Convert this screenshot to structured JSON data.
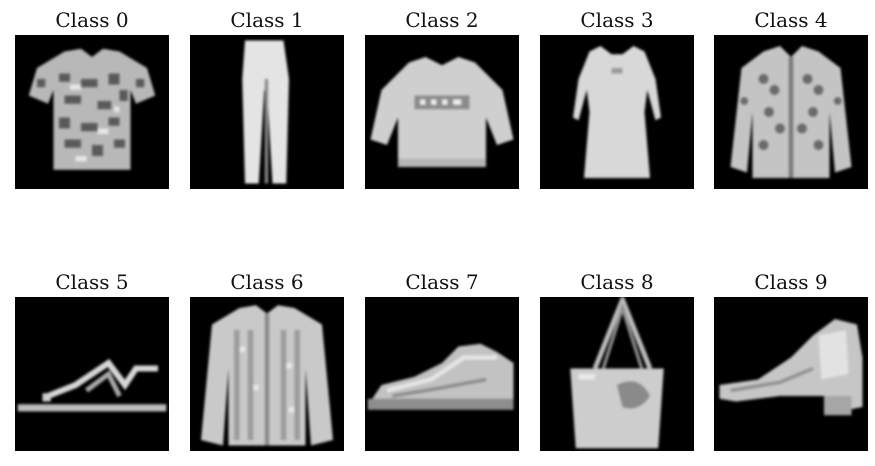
{
  "panels": [
    {
      "title": "Class 0",
      "item": "t-shirt-top"
    },
    {
      "title": "Class 1",
      "item": "trouser"
    },
    {
      "title": "Class 2",
      "item": "pullover"
    },
    {
      "title": "Class 3",
      "item": "dress"
    },
    {
      "title": "Class 4",
      "item": "coat"
    },
    {
      "title": "Class 5",
      "item": "sandal"
    },
    {
      "title": "Class 6",
      "item": "shirt"
    },
    {
      "title": "Class 7",
      "item": "sneaker"
    },
    {
      "title": "Class 8",
      "item": "bag"
    },
    {
      "title": "Class 9",
      "item": "ankle-boot"
    }
  ],
  "colors": {
    "background": "#000000",
    "item_light": "#dcdcdc",
    "item_mid": "#a9a9a9",
    "item_dark": "#6e6e6e"
  }
}
